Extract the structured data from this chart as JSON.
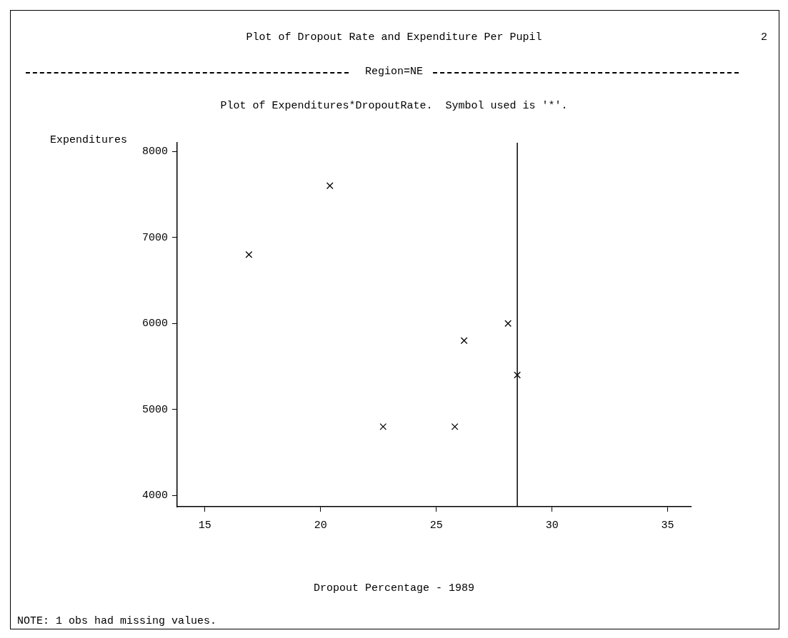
{
  "chart_data": {
    "type": "scatter",
    "title": "Plot of Dropout Rate and Expenditure Per Pupil",
    "subtitle": "Region=NE",
    "annotations": [
      "2",
      "Plot of Expenditures*DropoutRate.  Symbol used is '*'.",
      "NOTE: 1 obs had missing values."
    ],
    "xlabel": "Dropout Percentage - 1989",
    "ylabel": "Expenditures",
    "series": [
      {
        "color": "#000000",
        "x": [
          20.4,
          16.9,
          28.1,
          26.2,
          28.5,
          22.7,
          25.8
        ],
        "values": [
          7600,
          6800,
          6000,
          5800,
          5400,
          4800,
          4800
        ]
      }
    ],
    "xlim": [
      13.8,
      36
    ],
    "xticks": [
      15,
      20,
      25,
      30,
      35
    ],
    "ylim": [
      3870,
      8100
    ],
    "yticks": [
      4000,
      5000,
      6000,
      7000,
      8000
    ],
    "ref_lines": [
      {
        "axis": "x",
        "value": 28.5,
        "color": "#000000"
      }
    ],
    "marker": "cross",
    "grid": false,
    "legend": false
  }
}
